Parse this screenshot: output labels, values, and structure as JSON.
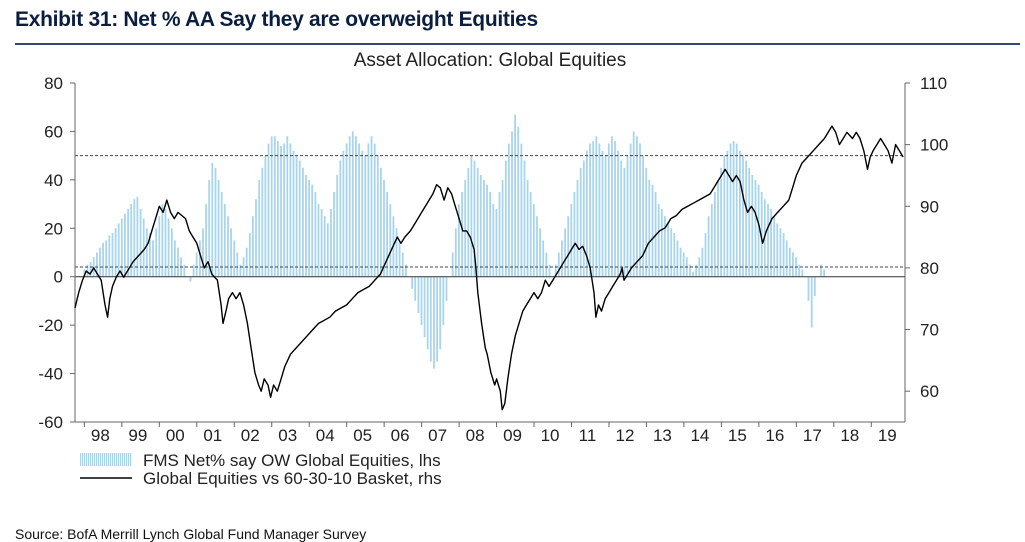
{
  "exhibit_title": "Exhibit 31: Net % AA Say they are overweight Equities",
  "source": "Source: BofA Merrill Lynch Global Fund Manager Survey",
  "colors": {
    "title": "#0b1e40",
    "rule": "#2e4a73",
    "bars": "#a8d4ee",
    "line": "#000000",
    "axis": "#666666"
  },
  "chart_data": {
    "type": "bar+line",
    "title": "Asset Allocation: Global Equities",
    "x_start": 1997.75,
    "x_end": 2019.9,
    "x_ticks": [
      "98",
      "99",
      "00",
      "01",
      "02",
      "03",
      "04",
      "05",
      "06",
      "07",
      "08",
      "09",
      "10",
      "11",
      "12",
      "13",
      "14",
      "15",
      "16",
      "17",
      "18",
      "19"
    ],
    "x_tick_years": [
      1998,
      1999,
      2000,
      2001,
      2002,
      2003,
      2004,
      2005,
      2006,
      2007,
      2008,
      2009,
      2010,
      2011,
      2012,
      2013,
      2014,
      2015,
      2016,
      2017,
      2018,
      2019
    ],
    "y_left": {
      "min": -60,
      "max": 80,
      "ticks": [
        "80",
        "60",
        "40",
        "20",
        "0",
        "-20",
        "-40",
        "-60"
      ],
      "tick_values": [
        80,
        60,
        40,
        20,
        0,
        -20,
        -40,
        -60
      ],
      "zero_line": 0
    },
    "y_right": {
      "min": 55,
      "max": 110,
      "ticks": [
        "110",
        "100",
        "90",
        "80",
        "70",
        "60"
      ],
      "tick_values": [
        110,
        100,
        90,
        80,
        70,
        60
      ]
    },
    "reference_lines_left": [
      50,
      4
    ],
    "series": [
      {
        "name": "FMS Net% say OW Global Equities, lhs",
        "type": "bar",
        "axis": "left",
        "start": 1998.0,
        "step": 0.0833,
        "values": [
          3,
          5,
          6,
          8,
          10,
          12,
          14,
          15,
          17,
          18,
          20,
          22,
          24,
          26,
          28,
          30,
          32,
          33,
          28,
          24,
          20,
          18,
          15,
          20,
          25,
          30,
          28,
          24,
          20,
          15,
          12,
          8,
          5,
          0,
          -2,
          5,
          10,
          15,
          20,
          30,
          40,
          47,
          45,
          40,
          35,
          30,
          25,
          20,
          15,
          10,
          5,
          8,
          12,
          18,
          25,
          32,
          40,
          45,
          50,
          55,
          58,
          58,
          56,
          54,
          55,
          58,
          55,
          52,
          50,
          48,
          45,
          42,
          40,
          38,
          35,
          30,
          28,
          25,
          22,
          28,
          35,
          42,
          48,
          52,
          55,
          58,
          60,
          58,
          55,
          52,
          50,
          55,
          58,
          55,
          50,
          45,
          40,
          35,
          30,
          25,
          20,
          15,
          10,
          5,
          0,
          -5,
          -10,
          -15,
          -20,
          -25,
          -30,
          -35,
          -38,
          -35,
          -30,
          -20,
          -10,
          0,
          10,
          20,
          30,
          35,
          40,
          45,
          50,
          48,
          45,
          42,
          40,
          38,
          35,
          30,
          28,
          35,
          40,
          48,
          55,
          60,
          67,
          62,
          55,
          48,
          40,
          35,
          30,
          25,
          20,
          15,
          10,
          5,
          0,
          5,
          10,
          15,
          20,
          25,
          30,
          35,
          40,
          45,
          48,
          52,
          55,
          56,
          58,
          55,
          52,
          50,
          55,
          58,
          56,
          52,
          48,
          45,
          50,
          55,
          60,
          58,
          55,
          50,
          45,
          40,
          38,
          35,
          30,
          28,
          25,
          22,
          20,
          18,
          15,
          12,
          10,
          8,
          5,
          2,
          5,
          8,
          12,
          18,
          25,
          30,
          35,
          40,
          45,
          50,
          52,
          55,
          56,
          55,
          52,
          50,
          48,
          45,
          42,
          40,
          38,
          35,
          32,
          30,
          28,
          25,
          22,
          20,
          18,
          15,
          12,
          10,
          8,
          5,
          3,
          0,
          -10,
          -21,
          -8,
          0,
          5,
          3
        ]
      },
      {
        "name": "Global Equities vs 60-30-10 Basket, rhs",
        "type": "line",
        "axis": "right",
        "points": [
          [
            1997.75,
            73.5
          ],
          [
            1997.85,
            76
          ],
          [
            1997.95,
            78
          ],
          [
            1998.05,
            79.5
          ],
          [
            1998.15,
            79
          ],
          [
            1998.25,
            80
          ],
          [
            1998.35,
            79
          ],
          [
            1998.45,
            78
          ],
          [
            1998.55,
            74
          ],
          [
            1998.62,
            72
          ],
          [
            1998.68,
            75
          ],
          [
            1998.75,
            77
          ],
          [
            1998.85,
            78.5
          ],
          [
            1998.95,
            79.5
          ],
          [
            1999.05,
            78.5
          ],
          [
            1999.15,
            79.5
          ],
          [
            1999.3,
            81
          ],
          [
            1999.45,
            82
          ],
          [
            1999.6,
            83
          ],
          [
            1999.7,
            84
          ],
          [
            1999.8,
            86
          ],
          [
            1999.9,
            88
          ],
          [
            2000.0,
            90
          ],
          [
            2000.1,
            89
          ],
          [
            2000.2,
            91
          ],
          [
            2000.3,
            89
          ],
          [
            2000.4,
            88
          ],
          [
            2000.5,
            89
          ],
          [
            2000.6,
            88.5
          ],
          [
            2000.7,
            88
          ],
          [
            2000.8,
            86
          ],
          [
            2000.9,
            85
          ],
          [
            2001.0,
            84
          ],
          [
            2001.1,
            82
          ],
          [
            2001.2,
            80
          ],
          [
            2001.3,
            81
          ],
          [
            2001.4,
            79
          ],
          [
            2001.55,
            78
          ],
          [
            2001.65,
            74
          ],
          [
            2001.7,
            71
          ],
          [
            2001.78,
            73
          ],
          [
            2001.85,
            75
          ],
          [
            2001.95,
            76
          ],
          [
            2002.05,
            75
          ],
          [
            2002.15,
            76
          ],
          [
            2002.25,
            74
          ],
          [
            2002.35,
            71
          ],
          [
            2002.45,
            67
          ],
          [
            2002.55,
            63
          ],
          [
            2002.65,
            61
          ],
          [
            2002.72,
            60
          ],
          [
            2002.8,
            62
          ],
          [
            2002.9,
            61
          ],
          [
            2002.97,
            59
          ],
          [
            2003.05,
            61
          ],
          [
            2003.15,
            60
          ],
          [
            2003.25,
            62
          ],
          [
            2003.35,
            64
          ],
          [
            2003.5,
            66
          ],
          [
            2003.65,
            67
          ],
          [
            2003.8,
            68
          ],
          [
            2003.95,
            69
          ],
          [
            2004.1,
            70
          ],
          [
            2004.25,
            71
          ],
          [
            2004.4,
            71.5
          ],
          [
            2004.55,
            72
          ],
          [
            2004.7,
            73
          ],
          [
            2004.85,
            73.5
          ],
          [
            2005.0,
            74
          ],
          [
            2005.15,
            75
          ],
          [
            2005.3,
            76
          ],
          [
            2005.45,
            76.5
          ],
          [
            2005.6,
            77
          ],
          [
            2005.75,
            78
          ],
          [
            2005.9,
            79
          ],
          [
            2006.05,
            81
          ],
          [
            2006.2,
            83
          ],
          [
            2006.35,
            85
          ],
          [
            2006.45,
            84
          ],
          [
            2006.55,
            85
          ],
          [
            2006.7,
            86
          ],
          [
            2006.85,
            87.5
          ],
          [
            2007.0,
            89
          ],
          [
            2007.15,
            90.5
          ],
          [
            2007.3,
            92
          ],
          [
            2007.4,
            93.5
          ],
          [
            2007.5,
            93
          ],
          [
            2007.6,
            91
          ],
          [
            2007.7,
            93
          ],
          [
            2007.8,
            92
          ],
          [
            2007.9,
            90
          ],
          [
            2008.0,
            88
          ],
          [
            2008.1,
            86
          ],
          [
            2008.2,
            86
          ],
          [
            2008.3,
            85
          ],
          [
            2008.4,
            83
          ],
          [
            2008.45,
            80
          ],
          [
            2008.5,
            76
          ],
          [
            2008.6,
            71
          ],
          [
            2008.7,
            67
          ],
          [
            2008.75,
            66
          ],
          [
            2008.85,
            63
          ],
          [
            2008.95,
            61
          ],
          [
            2009.0,
            62
          ],
          [
            2009.1,
            60
          ],
          [
            2009.15,
            57
          ],
          [
            2009.22,
            58
          ],
          [
            2009.3,
            62
          ],
          [
            2009.4,
            66
          ],
          [
            2009.5,
            69
          ],
          [
            2009.6,
            71
          ],
          [
            2009.7,
            73
          ],
          [
            2009.8,
            74
          ],
          [
            2009.9,
            75
          ],
          [
            2010.0,
            76
          ],
          [
            2010.1,
            75
          ],
          [
            2010.2,
            76
          ],
          [
            2010.3,
            78
          ],
          [
            2010.4,
            77
          ],
          [
            2010.5,
            78
          ],
          [
            2010.6,
            79
          ],
          [
            2010.7,
            80
          ],
          [
            2010.8,
            81
          ],
          [
            2010.9,
            82
          ],
          [
            2011.0,
            83
          ],
          [
            2011.1,
            84
          ],
          [
            2011.2,
            83
          ],
          [
            2011.3,
            83.5
          ],
          [
            2011.4,
            82
          ],
          [
            2011.5,
            80
          ],
          [
            2011.6,
            76
          ],
          [
            2011.65,
            72
          ],
          [
            2011.72,
            74
          ],
          [
            2011.8,
            73
          ],
          [
            2011.9,
            75
          ],
          [
            2012.0,
            76
          ],
          [
            2012.1,
            77
          ],
          [
            2012.2,
            78
          ],
          [
            2012.3,
            79
          ],
          [
            2012.35,
            80
          ],
          [
            2012.4,
            78
          ],
          [
            2012.5,
            79
          ],
          [
            2012.6,
            80
          ],
          [
            2012.75,
            81
          ],
          [
            2012.9,
            82
          ],
          [
            2013.05,
            84
          ],
          [
            2013.2,
            85
          ],
          [
            2013.35,
            86
          ],
          [
            2013.5,
            86.5
          ],
          [
            2013.65,
            88
          ],
          [
            2013.8,
            88.5
          ],
          [
            2013.95,
            89.5
          ],
          [
            2014.1,
            90
          ],
          [
            2014.25,
            90.5
          ],
          [
            2014.4,
            91
          ],
          [
            2014.55,
            91.5
          ],
          [
            2014.7,
            92
          ],
          [
            2014.8,
            93
          ],
          [
            2014.9,
            94
          ],
          [
            2015.0,
            95
          ],
          [
            2015.1,
            96
          ],
          [
            2015.2,
            95
          ],
          [
            2015.3,
            94
          ],
          [
            2015.4,
            95
          ],
          [
            2015.5,
            94
          ],
          [
            2015.6,
            91
          ],
          [
            2015.7,
            89
          ],
          [
            2015.8,
            90
          ],
          [
            2015.9,
            89
          ],
          [
            2016.0,
            87
          ],
          [
            2016.1,
            84
          ],
          [
            2016.2,
            86
          ],
          [
            2016.35,
            88
          ],
          [
            2016.5,
            89
          ],
          [
            2016.65,
            90
          ],
          [
            2016.8,
            91
          ],
          [
            2016.9,
            93
          ],
          [
            2017.0,
            95
          ],
          [
            2017.15,
            97
          ],
          [
            2017.3,
            98
          ],
          [
            2017.45,
            99
          ],
          [
            2017.6,
            100
          ],
          [
            2017.75,
            101
          ],
          [
            2017.85,
            102
          ],
          [
            2017.95,
            103
          ],
          [
            2018.05,
            102
          ],
          [
            2018.15,
            100
          ],
          [
            2018.25,
            101
          ],
          [
            2018.35,
            102
          ],
          [
            2018.5,
            101
          ],
          [
            2018.6,
            102
          ],
          [
            2018.7,
            101
          ],
          [
            2018.8,
            99
          ],
          [
            2018.9,
            96
          ],
          [
            2018.97,
            98
          ],
          [
            2019.05,
            99
          ],
          [
            2019.15,
            100
          ],
          [
            2019.25,
            101
          ],
          [
            2019.35,
            100
          ],
          [
            2019.45,
            99
          ],
          [
            2019.55,
            97
          ],
          [
            2019.65,
            100
          ],
          [
            2019.75,
            99
          ],
          [
            2019.85,
            98
          ]
        ]
      }
    ]
  }
}
